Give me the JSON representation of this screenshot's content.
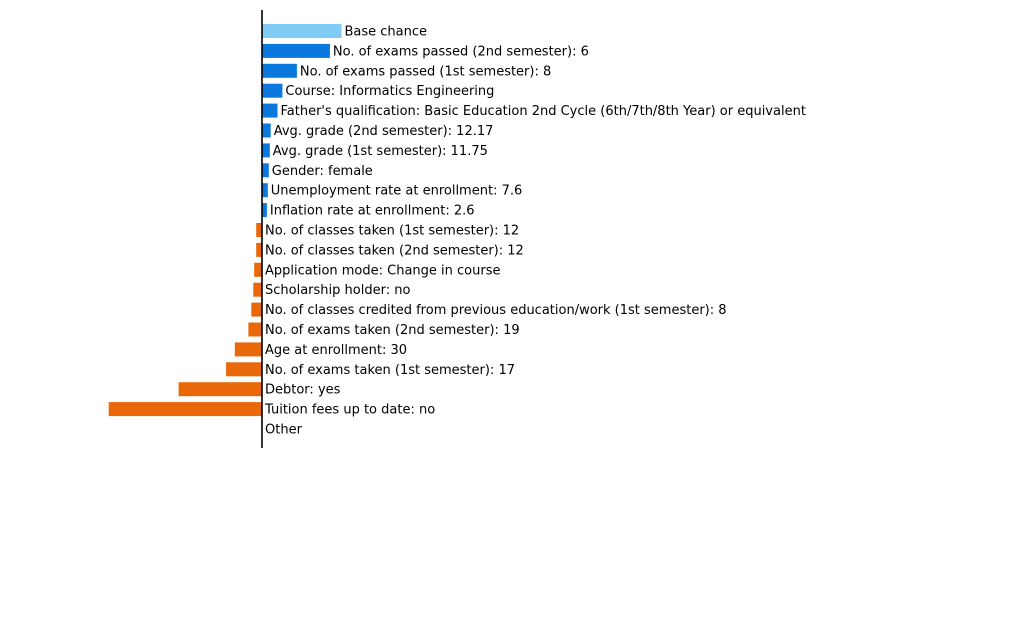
{
  "chart_data": {
    "type": "bar",
    "orientation": "horizontal",
    "grid": false,
    "legend": "none",
    "title": "",
    "xlabel": "",
    "ylabel": "",
    "colors": {
      "base": "#7fcbf5",
      "positive": "#0b78de",
      "negative": "#e8680a",
      "axis": "#000000"
    },
    "bars": [
      {
        "label": "Base chance",
        "value": 0.082,
        "kind": "base"
      },
      {
        "label": "No. of exams passed (2nd semester): 6",
        "value": 0.07,
        "kind": "positive"
      },
      {
        "label": "No. of exams passed (1st semester): 8",
        "value": 0.036,
        "kind": "positive"
      },
      {
        "label": "Course: Informatics Engineering",
        "value": 0.021,
        "kind": "positive"
      },
      {
        "label": "Father's qualification: Basic Education 2nd Cycle (6th/7th/8th Year) or equivalent",
        "value": 0.016,
        "kind": "positive"
      },
      {
        "label": "Avg. grade (2nd semester): 12.17",
        "value": 0.009,
        "kind": "positive"
      },
      {
        "label": "Avg. grade (1st semester): 11.75",
        "value": 0.008,
        "kind": "positive"
      },
      {
        "label": "Gender: female",
        "value": 0.007,
        "kind": "positive"
      },
      {
        "label": "Unemployment rate at enrollment: 7.6",
        "value": 0.006,
        "kind": "positive"
      },
      {
        "label": "Inflation rate at enrollment: 2.6",
        "value": 0.005,
        "kind": "positive"
      },
      {
        "label": "No. of classes taken (1st semester): 12",
        "value": -0.006,
        "kind": "negative"
      },
      {
        "label": "No. of classes taken (2nd semester): 12",
        "value": -0.006,
        "kind": "negative"
      },
      {
        "label": "Application mode: Change in course",
        "value": -0.008,
        "kind": "negative"
      },
      {
        "label": "Scholarship holder: no",
        "value": -0.009,
        "kind": "negative"
      },
      {
        "label": "No. of classes credited from previous education/work (1st semester): 8",
        "value": -0.011,
        "kind": "negative"
      },
      {
        "label": "No. of exams taken (2nd semester): 19",
        "value": -0.014,
        "kind": "negative"
      },
      {
        "label": "Age at enrollment: 30",
        "value": -0.028,
        "kind": "negative"
      },
      {
        "label": "No. of exams taken (1st semester): 17",
        "value": -0.037,
        "kind": "negative"
      },
      {
        "label": "Debtor: yes",
        "value": -0.086,
        "kind": "negative"
      },
      {
        "label": "Tuition fees up to date: no",
        "value": -0.158,
        "kind": "negative"
      },
      {
        "label": "Other",
        "value": 0,
        "kind": "other"
      }
    ]
  }
}
